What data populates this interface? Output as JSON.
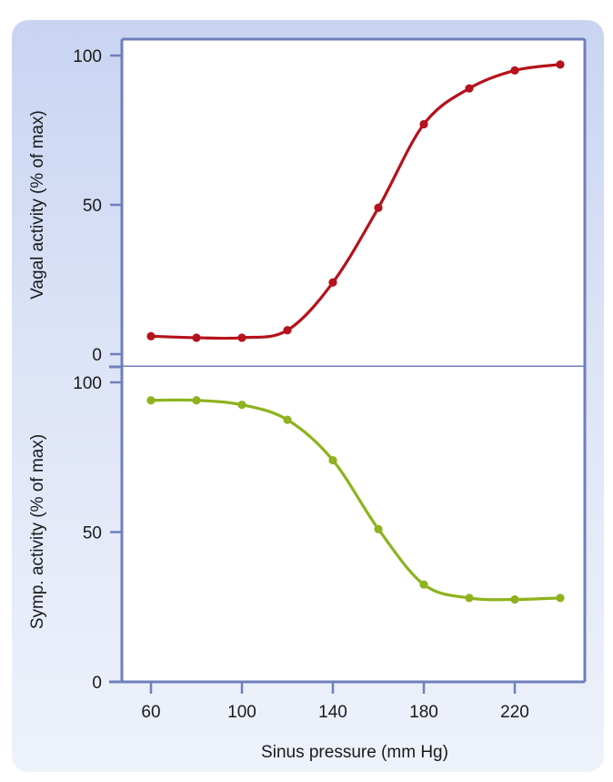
{
  "chart_data": [
    {
      "type": "line",
      "ylabel": "Vagal activity (% of max)",
      "xlabel": "",
      "xlim": [
        45,
        245
      ],
      "ylim": [
        0,
        100
      ],
      "yticks": [
        0,
        50,
        100
      ],
      "grid": false,
      "series": [
        {
          "color": "#b5121b",
          "x": [
            60,
            80,
            100,
            120,
            140,
            160,
            180,
            200,
            220,
            240
          ],
          "values": [
            6,
            5.5,
            5.5,
            8,
            24,
            49,
            77,
            89,
            95,
            97
          ]
        }
      ]
    },
    {
      "type": "line",
      "ylabel": "Symp. activity (% of max)",
      "xlabel": "Sinus pressure (mm Hg)",
      "xlim": [
        45,
        245
      ],
      "ylim": [
        0,
        100
      ],
      "xticks": [
        60,
        100,
        140,
        180,
        220
      ],
      "yticks": [
        0,
        50,
        100
      ],
      "grid": false,
      "series": [
        {
          "color": "#8db31e",
          "x": [
            60,
            80,
            100,
            120,
            140,
            160,
            180,
            200,
            220,
            240
          ],
          "values": [
            94,
            94,
            92.5,
            87.5,
            74,
            51,
            32.5,
            28,
            27.5,
            28
          ]
        }
      ]
    }
  ],
  "colors": {
    "frame": "#6f7fbd",
    "panel_background": "#d5ddf5"
  }
}
